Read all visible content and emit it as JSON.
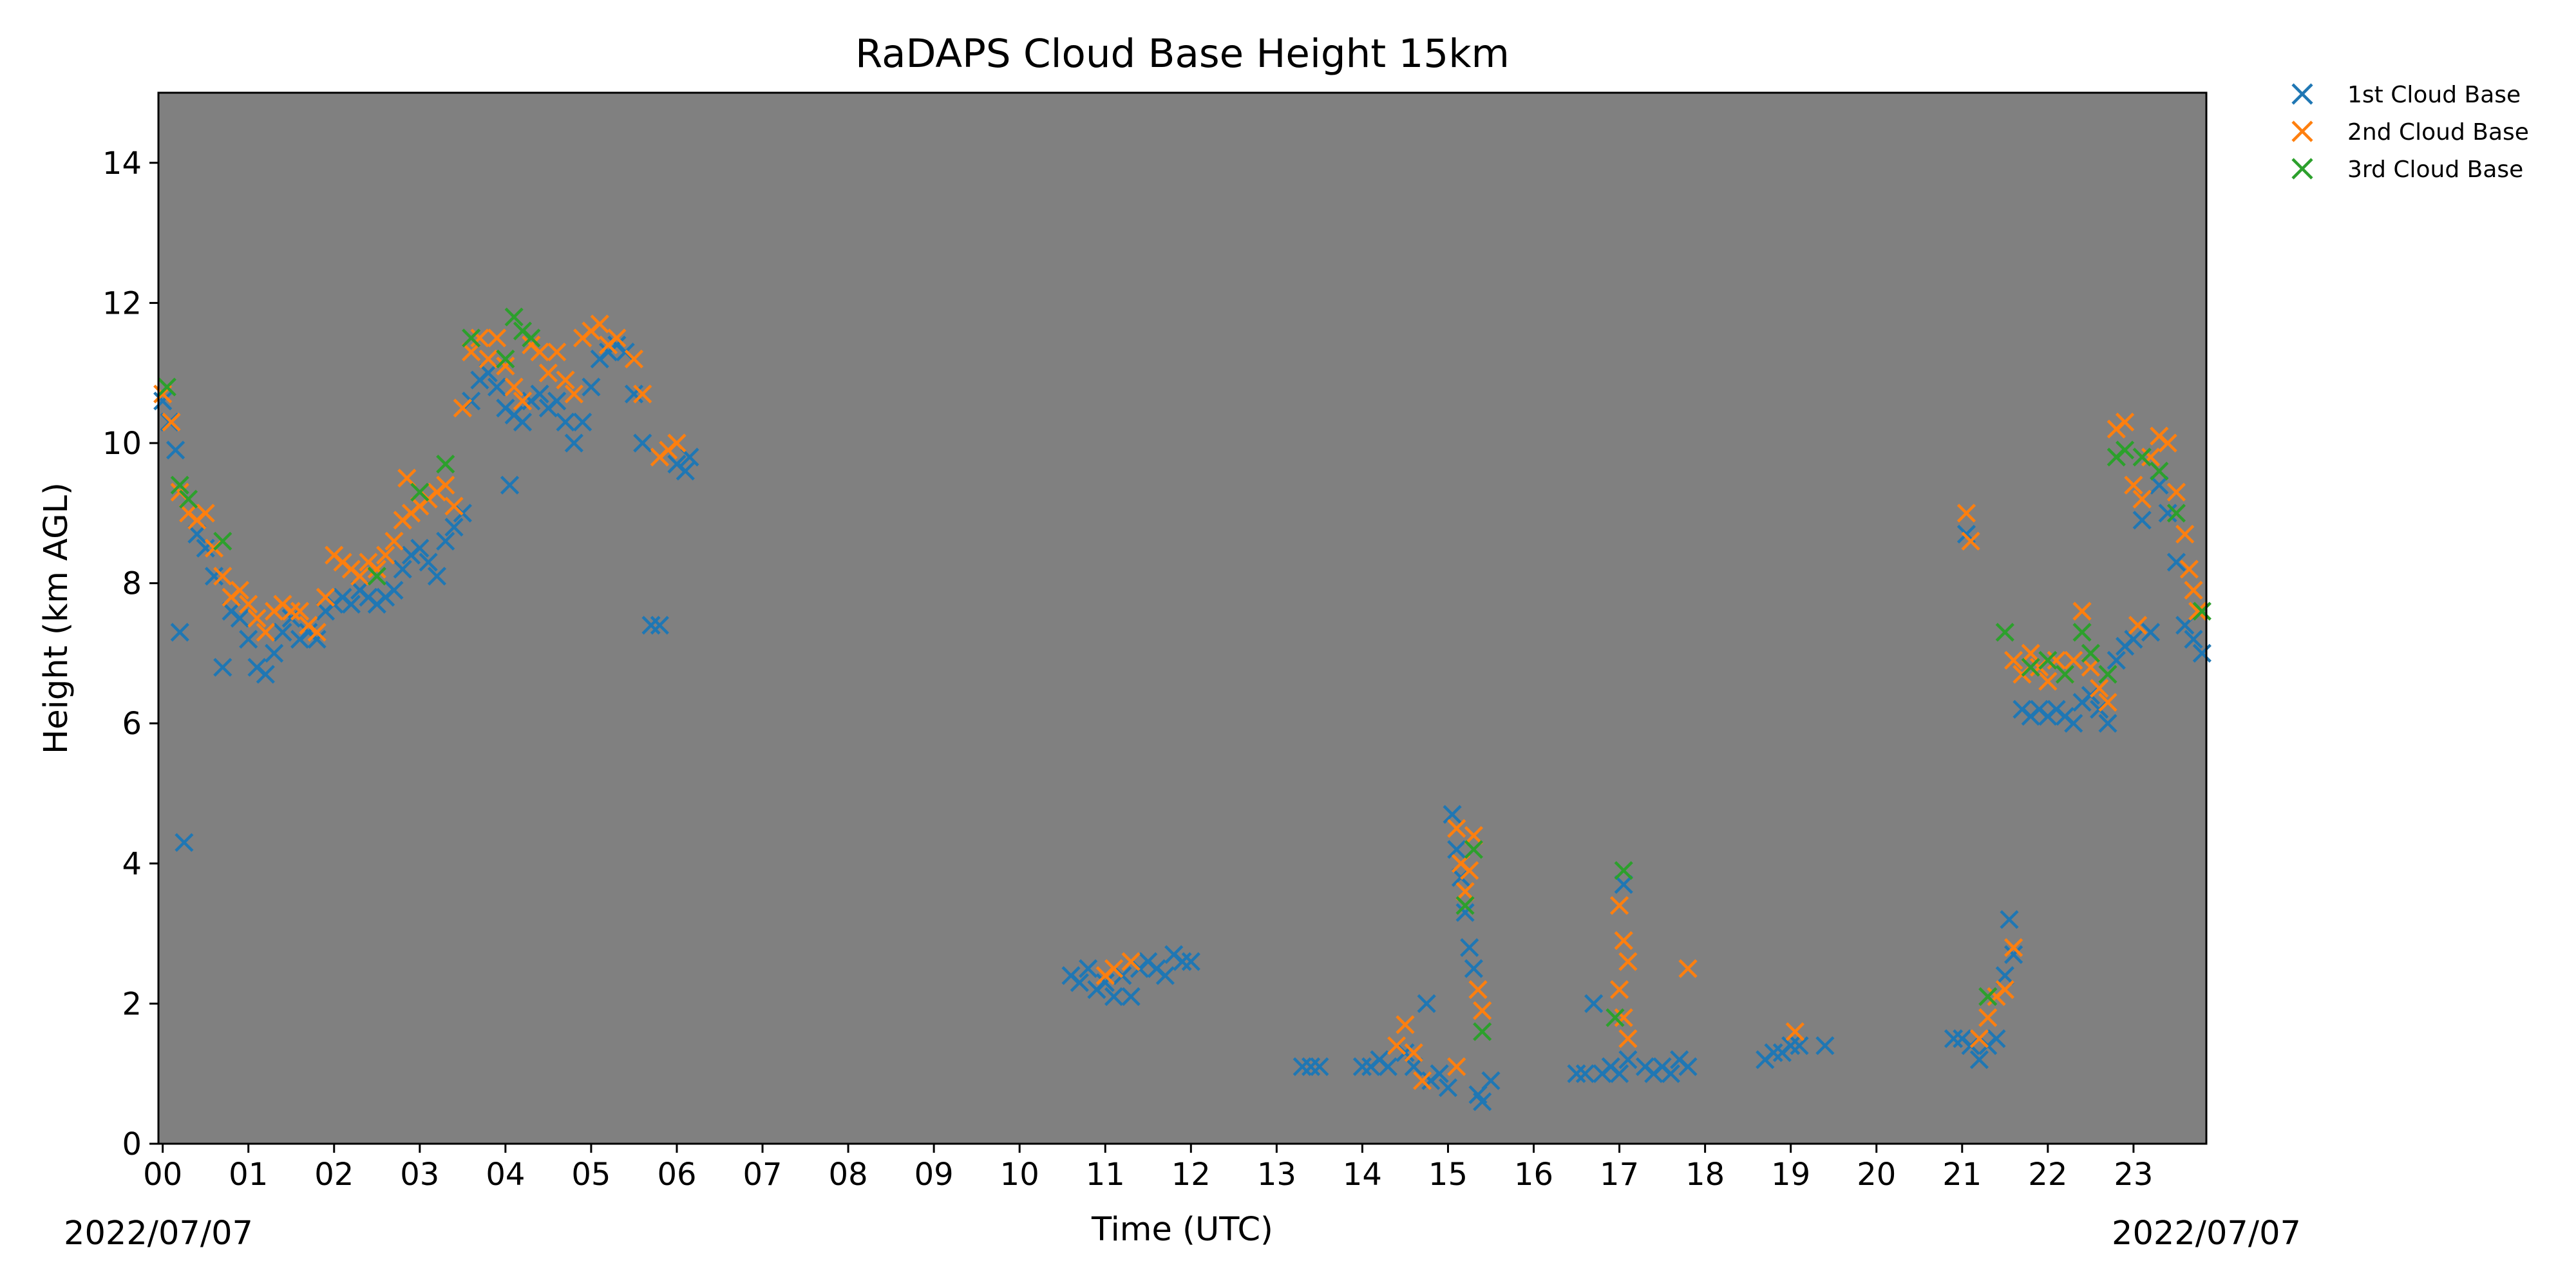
{
  "chart_data": {
    "type": "scatter",
    "title": "RaDAPS Cloud Base Height 15km",
    "xlabel": "Time (UTC)",
    "ylabel": "Height (km AGL)",
    "x_unit": "hour UTC",
    "xlim": [
      -0.05,
      23.85
    ],
    "ylim": [
      0,
      15
    ],
    "xticks": [
      0,
      1,
      2,
      3,
      4,
      5,
      6,
      7,
      8,
      9,
      10,
      11,
      12,
      13,
      14,
      15,
      16,
      17,
      18,
      19,
      20,
      21,
      22,
      23
    ],
    "xtick_labels": [
      "00",
      "01",
      "02",
      "03",
      "04",
      "05",
      "06",
      "07",
      "08",
      "09",
      "10",
      "11",
      "12",
      "13",
      "14",
      "15",
      "16",
      "17",
      "18",
      "19",
      "20",
      "21",
      "22",
      "23"
    ],
    "yticks": [
      0,
      2,
      4,
      6,
      8,
      10,
      12,
      14
    ],
    "ytick_labels": [
      "0",
      "2",
      "4",
      "6",
      "8",
      "10",
      "12",
      "14"
    ],
    "date_start_label": "2022/07/07",
    "date_end_label": "2022/07/07",
    "plot_background": "#808080",
    "grid": false,
    "legend_position": "outside-top-right",
    "marker": "x",
    "series": [
      {
        "name": "1st Cloud Base",
        "color": "#1f77b4",
        "points": [
          [
            0.0,
            10.6
          ],
          [
            0.08,
            10.3
          ],
          [
            0.15,
            9.9
          ],
          [
            0.2,
            7.3
          ],
          [
            0.25,
            4.3
          ],
          [
            0.3,
            9.0
          ],
          [
            0.4,
            8.7
          ],
          [
            0.5,
            8.5
          ],
          [
            0.6,
            8.1
          ],
          [
            0.7,
            6.8
          ],
          [
            0.8,
            7.6
          ],
          [
            0.9,
            7.5
          ],
          [
            1.0,
            7.2
          ],
          [
            1.1,
            6.8
          ],
          [
            1.2,
            6.7
          ],
          [
            1.3,
            7.0
          ],
          [
            1.4,
            7.3
          ],
          [
            1.5,
            7.5
          ],
          [
            1.6,
            7.2
          ],
          [
            1.7,
            7.3
          ],
          [
            1.8,
            7.2
          ],
          [
            1.9,
            7.6
          ],
          [
            2.0,
            7.7
          ],
          [
            2.1,
            7.8
          ],
          [
            2.2,
            7.7
          ],
          [
            2.3,
            7.9
          ],
          [
            2.4,
            7.8
          ],
          [
            2.5,
            7.7
          ],
          [
            2.6,
            7.8
          ],
          [
            2.7,
            7.9
          ],
          [
            2.8,
            8.2
          ],
          [
            2.9,
            8.4
          ],
          [
            3.0,
            8.5
          ],
          [
            3.1,
            8.3
          ],
          [
            3.2,
            8.1
          ],
          [
            3.3,
            8.6
          ],
          [
            3.4,
            8.8
          ],
          [
            3.5,
            9.0
          ],
          [
            3.6,
            10.6
          ],
          [
            3.7,
            10.9
          ],
          [
            3.8,
            11.0
          ],
          [
            3.9,
            10.8
          ],
          [
            4.0,
            10.5
          ],
          [
            4.05,
            9.4
          ],
          [
            4.1,
            10.4
          ],
          [
            4.2,
            10.3
          ],
          [
            4.3,
            10.6
          ],
          [
            4.4,
            10.7
          ],
          [
            4.5,
            10.5
          ],
          [
            4.6,
            10.6
          ],
          [
            4.7,
            10.3
          ],
          [
            4.8,
            10.0
          ],
          [
            4.9,
            10.3
          ],
          [
            5.0,
            10.8
          ],
          [
            5.1,
            11.2
          ],
          [
            5.2,
            11.3
          ],
          [
            5.3,
            11.4
          ],
          [
            5.4,
            11.3
          ],
          [
            5.5,
            10.7
          ],
          [
            5.6,
            10.0
          ],
          [
            5.7,
            7.4
          ],
          [
            5.8,
            7.4
          ],
          [
            5.9,
            9.9
          ],
          [
            6.0,
            9.7
          ],
          [
            6.1,
            9.6
          ],
          [
            6.15,
            9.8
          ],
          [
            10.6,
            2.4
          ],
          [
            10.7,
            2.3
          ],
          [
            10.8,
            2.5
          ],
          [
            10.9,
            2.2
          ],
          [
            11.0,
            2.3
          ],
          [
            11.1,
            2.1
          ],
          [
            11.2,
            2.4
          ],
          [
            11.3,
            2.1
          ],
          [
            11.4,
            2.5
          ],
          [
            11.5,
            2.6
          ],
          [
            11.6,
            2.5
          ],
          [
            11.7,
            2.4
          ],
          [
            11.8,
            2.7
          ],
          [
            11.9,
            2.6
          ],
          [
            12.0,
            2.6
          ],
          [
            13.3,
            1.1
          ],
          [
            13.4,
            1.1
          ],
          [
            13.5,
            1.1
          ],
          [
            14.0,
            1.1
          ],
          [
            14.1,
            1.1
          ],
          [
            14.2,
            1.2
          ],
          [
            14.3,
            1.1
          ],
          [
            14.4,
            1.4
          ],
          [
            14.5,
            1.3
          ],
          [
            14.6,
            1.1
          ],
          [
            14.7,
            0.9
          ],
          [
            14.75,
            2.0
          ],
          [
            14.8,
            0.9
          ],
          [
            14.9,
            1.0
          ],
          [
            15.0,
            0.8
          ],
          [
            15.05,
            4.7
          ],
          [
            15.1,
            4.2
          ],
          [
            15.15,
            3.8
          ],
          [
            15.2,
            3.3
          ],
          [
            15.25,
            2.8
          ],
          [
            15.3,
            2.5
          ],
          [
            15.35,
            0.7
          ],
          [
            15.4,
            0.6
          ],
          [
            15.5,
            0.9
          ],
          [
            16.5,
            1.0
          ],
          [
            16.6,
            1.0
          ],
          [
            16.7,
            2.0
          ],
          [
            16.8,
            1.0
          ],
          [
            16.9,
            1.1
          ],
          [
            17.0,
            1.0
          ],
          [
            17.05,
            3.7
          ],
          [
            17.1,
            1.2
          ],
          [
            17.3,
            1.1
          ],
          [
            17.4,
            1.0
          ],
          [
            17.5,
            1.1
          ],
          [
            17.6,
            1.0
          ],
          [
            17.7,
            1.2
          ],
          [
            17.8,
            1.1
          ],
          [
            18.7,
            1.2
          ],
          [
            18.8,
            1.3
          ],
          [
            18.9,
            1.3
          ],
          [
            19.0,
            1.4
          ],
          [
            19.1,
            1.4
          ],
          [
            19.4,
            1.4
          ],
          [
            20.9,
            1.5
          ],
          [
            21.0,
            1.5
          ],
          [
            21.05,
            8.7
          ],
          [
            21.1,
            1.4
          ],
          [
            21.2,
            1.2
          ],
          [
            21.3,
            1.4
          ],
          [
            21.4,
            1.5
          ],
          [
            21.5,
            2.4
          ],
          [
            21.55,
            3.2
          ],
          [
            21.6,
            2.7
          ],
          [
            21.7,
            6.2
          ],
          [
            21.8,
            6.1
          ],
          [
            21.9,
            6.2
          ],
          [
            22.0,
            6.1
          ],
          [
            22.1,
            6.2
          ],
          [
            22.2,
            6.1
          ],
          [
            22.3,
            6.0
          ],
          [
            22.4,
            6.3
          ],
          [
            22.5,
            6.4
          ],
          [
            22.6,
            6.2
          ],
          [
            22.7,
            6.0
          ],
          [
            22.8,
            6.9
          ],
          [
            22.9,
            7.1
          ],
          [
            23.0,
            7.2
          ],
          [
            23.1,
            8.9
          ],
          [
            23.2,
            7.3
          ],
          [
            23.3,
            9.4
          ],
          [
            23.4,
            9.0
          ],
          [
            23.5,
            8.3
          ],
          [
            23.6,
            7.4
          ],
          [
            23.7,
            7.2
          ],
          [
            23.8,
            7.0
          ]
        ]
      },
      {
        "name": "2nd Cloud Base",
        "color": "#ff7f0e",
        "points": [
          [
            0.0,
            10.7
          ],
          [
            0.1,
            10.3
          ],
          [
            0.2,
            9.3
          ],
          [
            0.3,
            9.0
          ],
          [
            0.4,
            8.9
          ],
          [
            0.5,
            9.0
          ],
          [
            0.6,
            8.5
          ],
          [
            0.7,
            8.1
          ],
          [
            0.8,
            7.8
          ],
          [
            0.9,
            7.9
          ],
          [
            1.0,
            7.7
          ],
          [
            1.1,
            7.5
          ],
          [
            1.2,
            7.3
          ],
          [
            1.3,
            7.6
          ],
          [
            1.4,
            7.7
          ],
          [
            1.5,
            7.6
          ],
          [
            1.6,
            7.6
          ],
          [
            1.7,
            7.4
          ],
          [
            1.8,
            7.3
          ],
          [
            1.9,
            7.8
          ],
          [
            2.0,
            8.4
          ],
          [
            2.1,
            8.3
          ],
          [
            2.2,
            8.2
          ],
          [
            2.3,
            8.1
          ],
          [
            2.4,
            8.3
          ],
          [
            2.5,
            8.2
          ],
          [
            2.6,
            8.4
          ],
          [
            2.7,
            8.6
          ],
          [
            2.8,
            8.9
          ],
          [
            2.85,
            9.5
          ],
          [
            2.9,
            9.0
          ],
          [
            3.0,
            9.1
          ],
          [
            3.1,
            9.2
          ],
          [
            3.2,
            9.3
          ],
          [
            3.3,
            9.4
          ],
          [
            3.4,
            9.1
          ],
          [
            3.5,
            10.5
          ],
          [
            3.6,
            11.3
          ],
          [
            3.7,
            11.5
          ],
          [
            3.8,
            11.2
          ],
          [
            3.9,
            11.5
          ],
          [
            4.0,
            11.1
          ],
          [
            4.1,
            10.8
          ],
          [
            4.2,
            10.6
          ],
          [
            4.3,
            11.4
          ],
          [
            4.4,
            11.3
          ],
          [
            4.5,
            11.0
          ],
          [
            4.6,
            11.3
          ],
          [
            4.7,
            10.9
          ],
          [
            4.8,
            10.7
          ],
          [
            4.9,
            11.5
          ],
          [
            5.0,
            11.6
          ],
          [
            5.1,
            11.7
          ],
          [
            5.2,
            11.4
          ],
          [
            5.3,
            11.5
          ],
          [
            5.5,
            11.2
          ],
          [
            5.6,
            10.7
          ],
          [
            5.8,
            9.8
          ],
          [
            5.9,
            9.9
          ],
          [
            6.0,
            10.0
          ],
          [
            11.0,
            2.4
          ],
          [
            11.1,
            2.5
          ],
          [
            11.3,
            2.6
          ],
          [
            14.4,
            1.4
          ],
          [
            14.5,
            1.7
          ],
          [
            14.6,
            1.3
          ],
          [
            14.7,
            0.9
          ],
          [
            15.1,
            4.5
          ],
          [
            15.15,
            4.0
          ],
          [
            15.2,
            3.6
          ],
          [
            15.25,
            3.9
          ],
          [
            15.3,
            4.4
          ],
          [
            15.1,
            1.1
          ],
          [
            15.35,
            2.2
          ],
          [
            15.4,
            1.9
          ],
          [
            17.0,
            3.4
          ],
          [
            17.05,
            2.9
          ],
          [
            17.1,
            2.6
          ],
          [
            17.0,
            2.2
          ],
          [
            17.05,
            1.8
          ],
          [
            17.1,
            1.5
          ],
          [
            17.8,
            2.5
          ],
          [
            19.05,
            1.6
          ],
          [
            21.05,
            9.0
          ],
          [
            21.1,
            8.6
          ],
          [
            21.2,
            1.5
          ],
          [
            21.3,
            1.8
          ],
          [
            21.4,
            2.1
          ],
          [
            21.5,
            2.2
          ],
          [
            21.6,
            2.8
          ],
          [
            21.6,
            6.9
          ],
          [
            21.7,
            6.7
          ],
          [
            21.8,
            7.0
          ],
          [
            21.9,
            6.8
          ],
          [
            22.0,
            6.6
          ],
          [
            22.1,
            6.9
          ],
          [
            22.2,
            6.7
          ],
          [
            22.3,
            6.9
          ],
          [
            22.4,
            7.6
          ],
          [
            22.5,
            6.8
          ],
          [
            22.6,
            6.5
          ],
          [
            22.7,
            6.3
          ],
          [
            22.8,
            10.2
          ],
          [
            22.9,
            10.3
          ],
          [
            23.0,
            9.4
          ],
          [
            23.05,
            7.4
          ],
          [
            23.1,
            9.2
          ],
          [
            23.2,
            9.8
          ],
          [
            23.3,
            10.1
          ],
          [
            23.4,
            10.0
          ],
          [
            23.5,
            9.3
          ],
          [
            23.6,
            8.7
          ],
          [
            23.65,
            8.2
          ],
          [
            23.7,
            7.9
          ],
          [
            23.75,
            7.6
          ]
        ]
      },
      {
        "name": "3rd Cloud Base",
        "color": "#2ca02c",
        "points": [
          [
            0.05,
            10.8
          ],
          [
            0.2,
            9.4
          ],
          [
            0.3,
            9.2
          ],
          [
            0.7,
            8.6
          ],
          [
            2.5,
            8.1
          ],
          [
            3.0,
            9.3
          ],
          [
            3.3,
            9.7
          ],
          [
            3.6,
            11.5
          ],
          [
            4.0,
            11.2
          ],
          [
            4.1,
            11.8
          ],
          [
            4.2,
            11.6
          ],
          [
            4.3,
            11.5
          ],
          [
            15.2,
            3.4
          ],
          [
            15.3,
            4.2
          ],
          [
            15.4,
            1.6
          ],
          [
            16.95,
            1.8
          ],
          [
            17.05,
            3.9
          ],
          [
            21.3,
            2.1
          ],
          [
            21.5,
            7.3
          ],
          [
            21.8,
            6.8
          ],
          [
            22.0,
            6.9
          ],
          [
            22.2,
            6.7
          ],
          [
            22.4,
            7.3
          ],
          [
            22.5,
            7.0
          ],
          [
            22.7,
            6.7
          ],
          [
            22.8,
            9.8
          ],
          [
            22.9,
            9.9
          ],
          [
            23.1,
            9.8
          ],
          [
            23.3,
            9.6
          ],
          [
            23.5,
            9.0
          ],
          [
            23.8,
            7.6
          ]
        ]
      }
    ]
  }
}
